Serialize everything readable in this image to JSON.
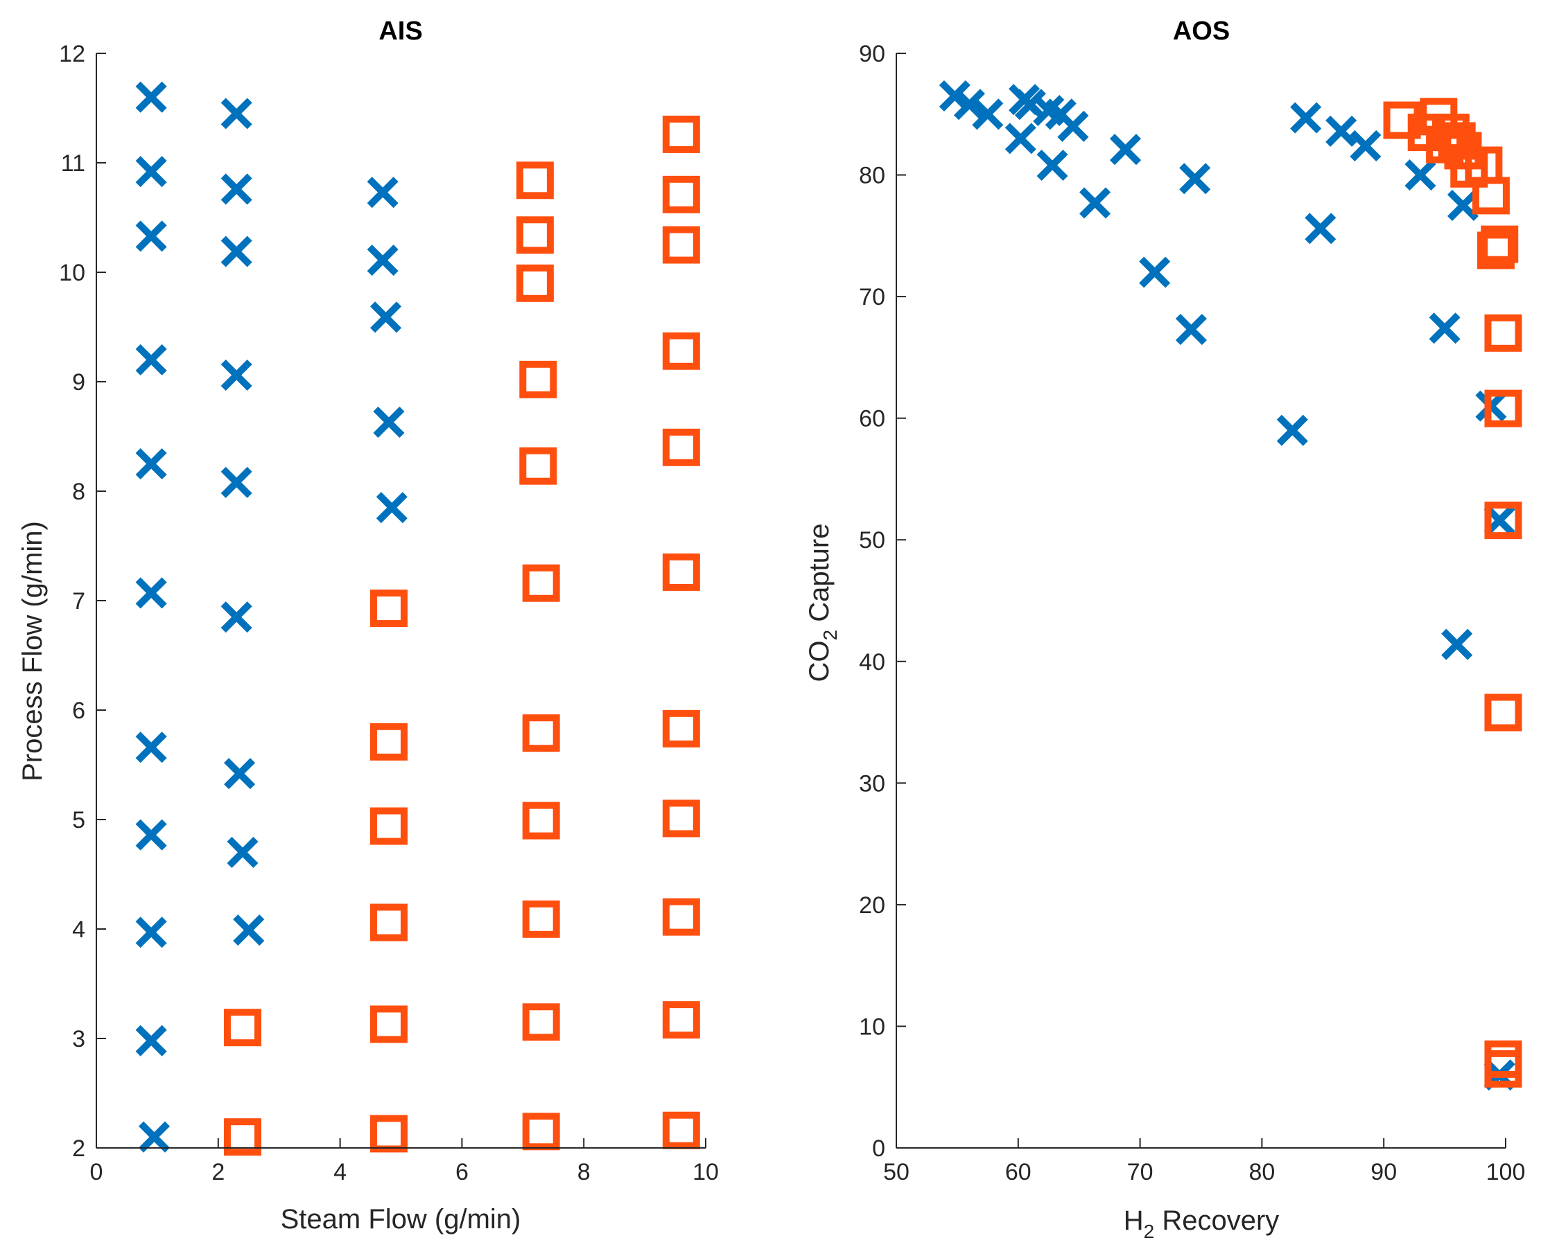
{
  "colors": {
    "fail": "#0072BD",
    "pass": "#FF4F0F",
    "axis": "#262626"
  },
  "chart_data": [
    {
      "type": "scatter",
      "title": "AIS",
      "xlabel": "Steam Flow (g/min)",
      "ylabel": "Process Flow (g/min)",
      "xlim": [
        0,
        10
      ],
      "ylim": [
        2,
        12
      ],
      "xticks": [
        "0",
        "2",
        "4",
        "6",
        "8",
        "10"
      ],
      "yticks": [
        "2",
        "3",
        "4",
        "5",
        "6",
        "7",
        "8",
        "9",
        "10",
        "11",
        "12"
      ],
      "series": [
        {
          "name": "x markers",
          "marker": "x",
          "points": [
            [
              0.9,
              11.6
            ],
            [
              0.9,
              10.92
            ],
            [
              0.9,
              10.33
            ],
            [
              0.9,
              9.2
            ],
            [
              0.9,
              8.25
            ],
            [
              0.9,
              7.07
            ],
            [
              0.9,
              5.66
            ],
            [
              0.9,
              4.86
            ],
            [
              0.9,
              3.97
            ],
            [
              0.9,
              2.98
            ],
            [
              0.95,
              2.1
            ],
            [
              2.3,
              11.45
            ],
            [
              2.3,
              10.76
            ],
            [
              2.3,
              10.19
            ],
            [
              2.3,
              9.06
            ],
            [
              2.3,
              8.08
            ],
            [
              2.3,
              6.85
            ],
            [
              2.35,
              5.42
            ],
            [
              2.4,
              4.7
            ],
            [
              2.5,
              3.99
            ],
            [
              4.7,
              10.73
            ],
            [
              4.7,
              10.11
            ],
            [
              4.75,
              9.59
            ],
            [
              4.8,
              8.63
            ],
            [
              4.85,
              7.85
            ]
          ]
        },
        {
          "name": "square markers",
          "marker": "square",
          "points": [
            [
              2.4,
              3.1
            ],
            [
              2.4,
              2.1
            ],
            [
              4.8,
              6.93
            ],
            [
              4.8,
              5.71
            ],
            [
              4.8,
              4.94
            ],
            [
              4.8,
              4.06
            ],
            [
              4.8,
              3.13
            ],
            [
              4.8,
              2.13
            ],
            [
              7.2,
              10.84
            ],
            [
              7.2,
              10.34
            ],
            [
              7.2,
              9.9
            ],
            [
              7.25,
              9.02
            ],
            [
              7.25,
              8.23
            ],
            [
              7.3,
              7.16
            ],
            [
              7.3,
              5.79
            ],
            [
              7.3,
              4.99
            ],
            [
              7.3,
              4.09
            ],
            [
              7.3,
              3.15
            ],
            [
              7.3,
              2.15
            ],
            [
              9.6,
              11.26
            ],
            [
              9.6,
              10.71
            ],
            [
              9.6,
              10.25
            ],
            [
              9.6,
              9.28
            ],
            [
              9.6,
              8.4
            ],
            [
              9.6,
              7.26
            ],
            [
              9.6,
              5.83
            ],
            [
              9.6,
              5.01
            ],
            [
              9.6,
              4.11
            ],
            [
              9.6,
              3.17
            ],
            [
              9.6,
              2.16
            ]
          ]
        }
      ]
    },
    {
      "type": "scatter",
      "title": "AOS",
      "xlabel": "H",
      "xlabel_sub": "2",
      "xlabel_rest": " Recovery",
      "ylabel": "CO",
      "ylabel_sub": "2",
      "ylabel_rest": " Capture",
      "xlim": [
        50,
        100
      ],
      "ylim": [
        0,
        90
      ],
      "xticks": [
        "50",
        "60",
        "70",
        "80",
        "90",
        "100"
      ],
      "yticks": [
        "0",
        "10",
        "20",
        "30",
        "40",
        "50",
        "60",
        "70",
        "80",
        "90"
      ],
      "series": [
        {
          "name": "x markers",
          "marker": "x",
          "points": [
            [
              54.8,
              86.5
            ],
            [
              56.0,
              85.8
            ],
            [
              57.5,
              85.0
            ],
            [
              60.5,
              86.2
            ],
            [
              61.0,
              85.8
            ],
            [
              62.5,
              85.3
            ],
            [
              63.5,
              85.0
            ],
            [
              64.5,
              84.0
            ],
            [
              60.2,
              83.0
            ],
            [
              62.8,
              80.8
            ],
            [
              66.3,
              77.7
            ],
            [
              68.8,
              82.1
            ],
            [
              74.5,
              79.7
            ],
            [
              71.2,
              72.0
            ],
            [
              74.2,
              67.3
            ],
            [
              82.5,
              59.0
            ],
            [
              83.6,
              84.7
            ],
            [
              84.8,
              75.6
            ],
            [
              86.5,
              83.6
            ],
            [
              88.5,
              82.4
            ],
            [
              93.0,
              80.0
            ],
            [
              95.0,
              67.4
            ],
            [
              96.0,
              41.4
            ],
            [
              96.5,
              77.5
            ],
            [
              98.8,
              61.0
            ],
            [
              99.5,
              51.6
            ],
            [
              99.5,
              6.0
            ]
          ]
        },
        {
          "name": "square markers",
          "marker": "square",
          "points": [
            [
              91.5,
              84.5
            ],
            [
              93.5,
              83.5
            ],
            [
              94.5,
              84.8
            ],
            [
              95.0,
              82.5
            ],
            [
              95.5,
              83.5
            ],
            [
              96.0,
              82.8
            ],
            [
              96.5,
              82.0
            ],
            [
              97.0,
              80.5
            ],
            [
              98.2,
              80.8
            ],
            [
              98.8,
              78.3
            ],
            [
              99.2,
              73.8
            ],
            [
              99.5,
              74.3
            ],
            [
              99.8,
              67.0
            ],
            [
              99.8,
              60.8
            ],
            [
              99.8,
              51.6
            ],
            [
              99.8,
              35.8
            ],
            [
              99.8,
              7.3
            ],
            [
              99.8,
              6.5
            ]
          ]
        }
      ]
    }
  ]
}
